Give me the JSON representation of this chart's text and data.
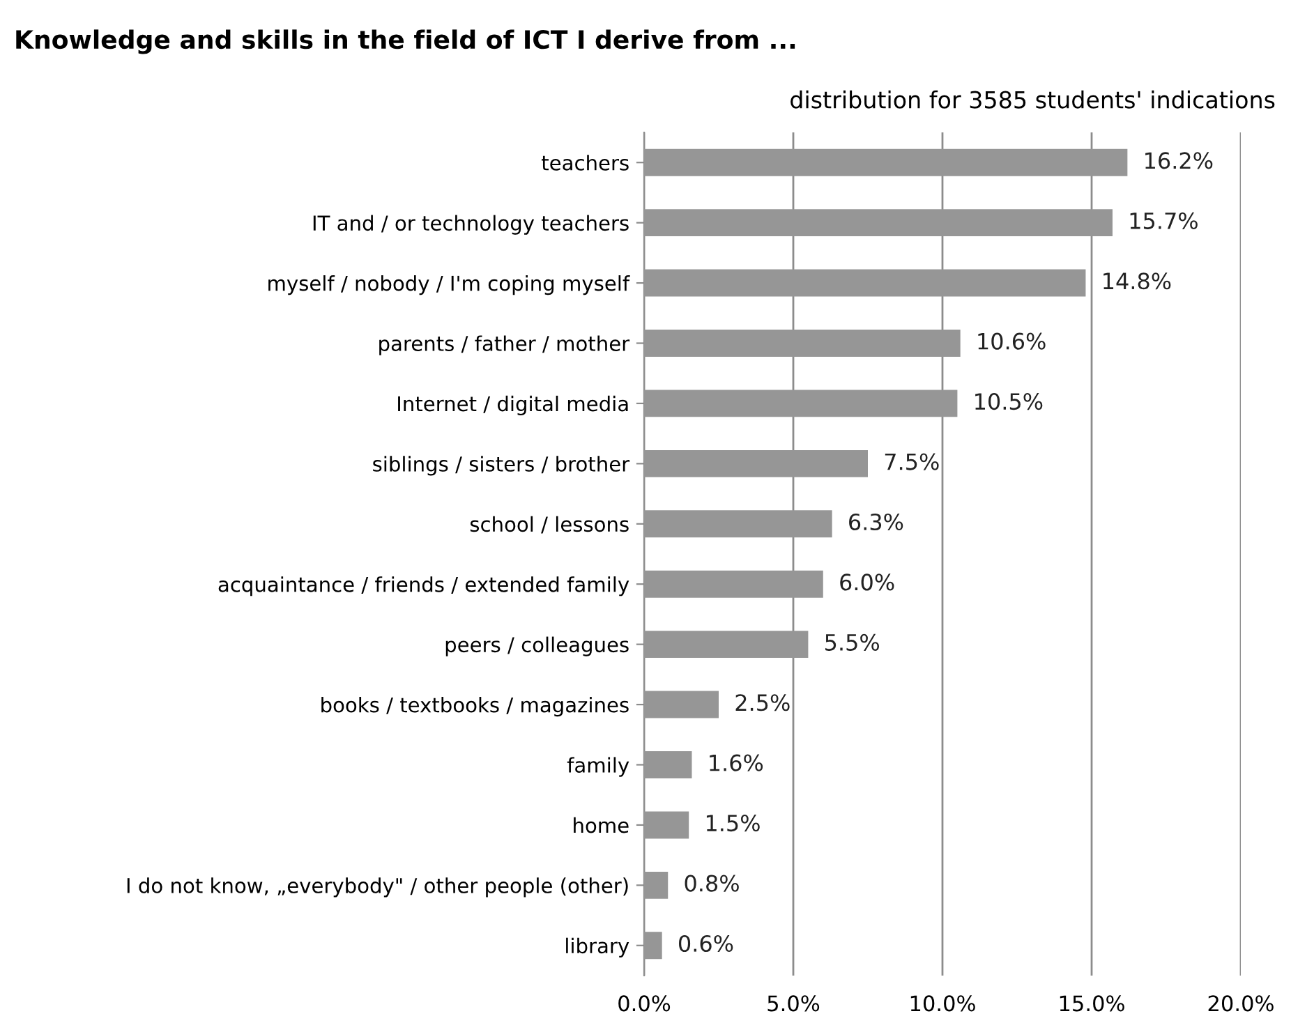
{
  "chart_data": {
    "type": "bar",
    "orientation": "horizontal",
    "title": "Knowledge and skills in the field of ICT I derive from ...",
    "subtitle": "distribution for 3585 students' indications",
    "categories": [
      "teachers",
      "IT and / or technology teachers",
      "myself / nobody / I'm coping myself",
      "parents / father / mother",
      "Internet / digital media",
      "siblings / sisters / brother",
      "school / lessons",
      "acquaintance / friends / extended family",
      "peers / colleagues",
      "books / textbooks / magazines",
      "family",
      "home",
      "I do not know, „everybody\" / other people (other)",
      "library"
    ],
    "values": [
      16.2,
      15.7,
      14.8,
      10.6,
      10.5,
      7.5,
      6.3,
      6.0,
      5.5,
      2.5,
      1.6,
      1.5,
      0.8,
      0.6
    ],
    "value_labels": [
      "16.2%",
      "15.7%",
      "14.8%",
      "10.6%",
      "10.5%",
      "7.5%",
      "6.3%",
      "6.0%",
      "5.5%",
      "2.5%",
      "1.6%",
      "1.5%",
      "0.8%",
      "0.6%"
    ],
    "color": "#969696",
    "xlim": [
      0,
      20
    ],
    "xticks": [
      {
        "value": 0,
        "label": "0.0%"
      },
      {
        "value": 5,
        "label": "5.0%"
      },
      {
        "value": 10,
        "label": "10.0%"
      },
      {
        "value": 15,
        "label": "15.0%"
      },
      {
        "value": 20,
        "label": "20.0%"
      }
    ],
    "grid": "x"
  }
}
